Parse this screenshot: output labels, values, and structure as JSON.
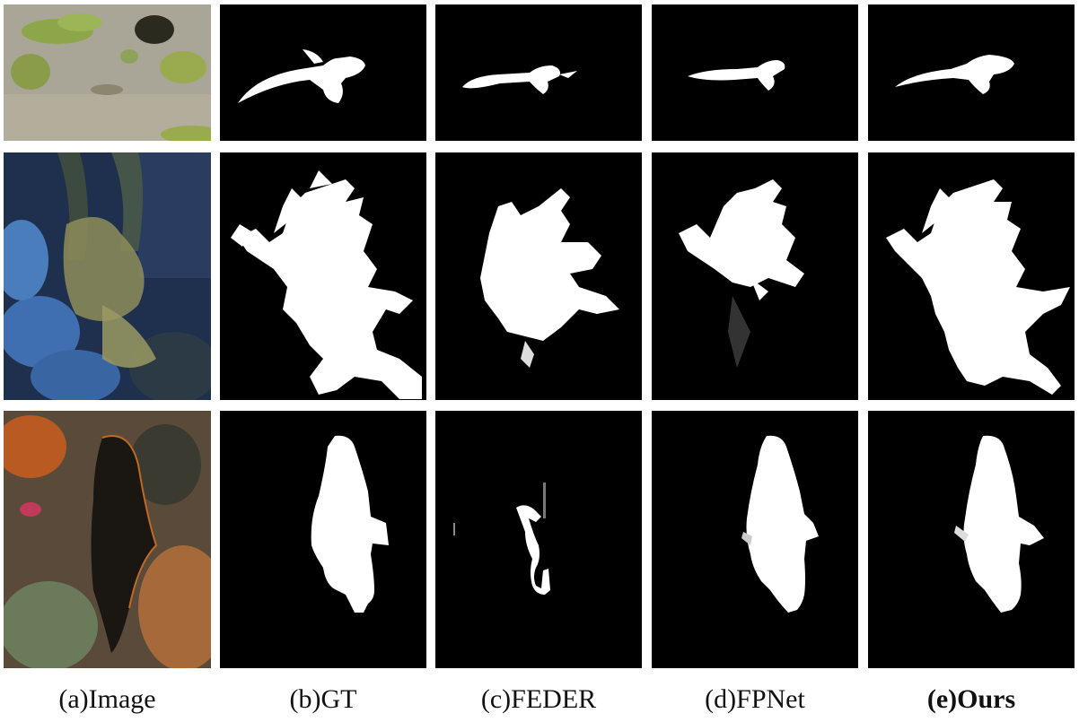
{
  "figure": {
    "captions": [
      {
        "id": "image",
        "label": "(a)Image",
        "bold": false
      },
      {
        "id": "gt",
        "label": "(b)GT",
        "bold": false
      },
      {
        "id": "feder",
        "label": "(c)FEDER",
        "bold": false
      },
      {
        "id": "fpnet",
        "label": "(d)FPNet",
        "bold": false
      },
      {
        "id": "ours",
        "label": "(e)Ours",
        "bold": true
      }
    ],
    "rows": [
      {
        "id": "row-1",
        "subject": "pipefish on sand"
      },
      {
        "id": "row-2",
        "subject": "leafy seadragon"
      },
      {
        "id": "row-3",
        "subject": "camouflaged fish on reef"
      }
    ]
  },
  "colors": {
    "mask_bg": "#000000",
    "mask_fg": "#ffffff",
    "page_bg": "#ffffff"
  }
}
